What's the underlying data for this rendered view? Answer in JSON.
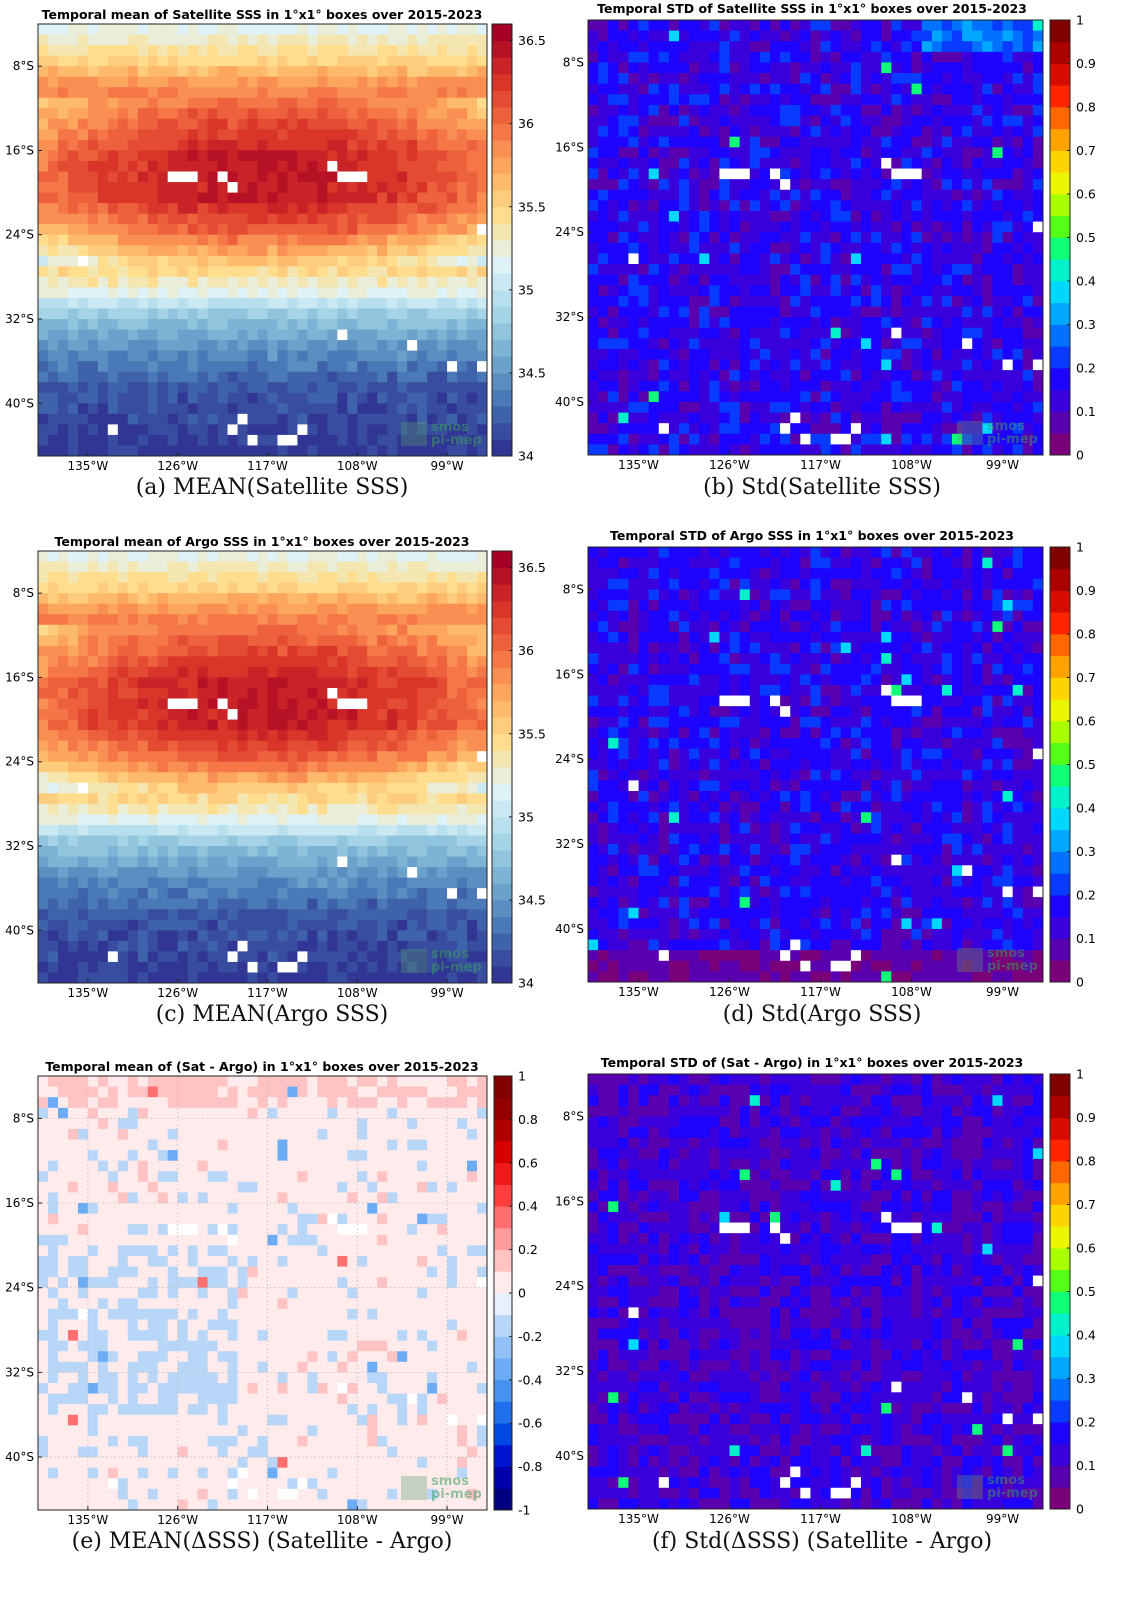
{
  "figure": {
    "watermark_line1": "smos",
    "watermark_line2": "pi-mep"
  },
  "chart_data": [
    {
      "id": "a",
      "type": "heatmap",
      "title": "Temporal mean of Satellite SSS in 1°x1° boxes over 2015-2023",
      "caption": "(a) MEAN(Satellite SSS)",
      "field": "mean_sat",
      "xticks": [
        "135°W",
        "126°W",
        "117°W",
        "108°W",
        "99°W"
      ],
      "xtick_values": [
        -135,
        -126,
        -117,
        -108,
        -99
      ],
      "yticks": [
        "8°S",
        "16°S",
        "24°S",
        "32°S",
        "40°S"
      ],
      "ytick_values": [
        -8,
        -16,
        -24,
        -32,
        -40
      ],
      "xlim": [
        -140,
        -95
      ],
      "ylim": [
        -45,
        -4
      ],
      "colorbar": {
        "colormap": "RdYlBu_r",
        "range": [
          34,
          36.6
        ],
        "ticks": [
          "34",
          "34.5",
          "35",
          "35.5",
          "36",
          "36.5"
        ],
        "tick_values": [
          34,
          34.5,
          35,
          35.5,
          36,
          36.5
        ],
        "levels": 26
      },
      "grid": false,
      "approx_values": {
        "lat_profile": [
          [
            -4,
            35.2
          ],
          [
            -7,
            35.5
          ],
          [
            -9,
            35.8
          ],
          [
            -12,
            36.1
          ],
          [
            -16,
            36.4
          ],
          [
            -20,
            36.4
          ],
          [
            -23,
            36.1
          ],
          [
            -26,
            35.6
          ],
          [
            -29,
            35.2
          ],
          [
            -31,
            34.8
          ],
          [
            -34,
            34.5
          ],
          [
            -38,
            34.2
          ],
          [
            -45,
            34.05
          ]
        ],
        "saltiest_center_lon": -118
      }
    },
    {
      "id": "b",
      "type": "heatmap",
      "title": "Temporal STD of Satellite SSS in 1°x1° boxes over 2015-2023",
      "caption": "(b) Std(Satellite SSS)",
      "field": "std_sat",
      "xticks": [
        "135°W",
        "126°W",
        "117°W",
        "108°W",
        "99°W"
      ],
      "xtick_values": [
        -135,
        -126,
        -117,
        -108,
        -99
      ],
      "yticks": [
        "8°S",
        "16°S",
        "24°S",
        "32°S",
        "40°S"
      ],
      "ytick_values": [
        -8,
        -16,
        -24,
        -32,
        -40
      ],
      "xlim": [
        -140,
        -95
      ],
      "ylim": [
        -45,
        -4
      ],
      "colorbar": {
        "colormap": "jet_purple",
        "range": [
          0,
          1
        ],
        "ticks": [
          "0",
          "0.1",
          "0.2",
          "0.3",
          "0.4",
          "0.5",
          "0.6",
          "0.7",
          "0.8",
          "0.9",
          "1"
        ],
        "tick_values": [
          0,
          0.1,
          0.2,
          0.3,
          0.4,
          0.5,
          0.6,
          0.7,
          0.8,
          0.9,
          1
        ],
        "levels": 20
      },
      "grid": false,
      "approx_values": {
        "typical_range": [
          0.08,
          0.25
        ],
        "max_near_northeast": 0.45
      }
    },
    {
      "id": "c",
      "type": "heatmap",
      "title": "Temporal mean of Argo SSS in 1°x1° boxes over 2015-2023",
      "caption": "(c) MEAN(Argo SSS)",
      "field": "mean_argo",
      "xticks": [
        "135°W",
        "126°W",
        "117°W",
        "108°W",
        "99°W"
      ],
      "xtick_values": [
        -135,
        -126,
        -117,
        -108,
        -99
      ],
      "yticks": [
        "8°S",
        "16°S",
        "24°S",
        "32°S",
        "40°S"
      ],
      "ytick_values": [
        -8,
        -16,
        -24,
        -32,
        -40
      ],
      "xlim": [
        -140,
        -95
      ],
      "ylim": [
        -45,
        -4
      ],
      "colorbar": {
        "colormap": "RdYlBu_r",
        "range": [
          34,
          36.6
        ],
        "ticks": [
          "34",
          "34.5",
          "35",
          "35.5",
          "36",
          "36.5"
        ],
        "tick_values": [
          34,
          34.5,
          35,
          35.5,
          36,
          36.5
        ],
        "levels": 26
      },
      "grid": false,
      "approx_values": {
        "lat_profile": [
          [
            -4,
            35.2
          ],
          [
            -7,
            35.5
          ],
          [
            -9,
            35.8
          ],
          [
            -12,
            36.1
          ],
          [
            -16,
            36.4
          ],
          [
            -20,
            36.4
          ],
          [
            -23,
            36.1
          ],
          [
            -26,
            35.6
          ],
          [
            -29,
            35.2
          ],
          [
            -31,
            34.8
          ],
          [
            -34,
            34.5
          ],
          [
            -38,
            34.2
          ],
          [
            -45,
            34.05
          ]
        ],
        "saltiest_center_lon": -118
      }
    },
    {
      "id": "d",
      "type": "heatmap",
      "title": "Temporal STD of Argo SSS in 1°x1° boxes over 2015-2023",
      "caption": "(d) Std(Argo SSS)",
      "field": "std_argo",
      "xticks": [
        "135°W",
        "126°W",
        "117°W",
        "108°W",
        "99°W"
      ],
      "xtick_values": [
        -135,
        -126,
        -117,
        -108,
        -99
      ],
      "yticks": [
        "8°S",
        "16°S",
        "24°S",
        "32°S",
        "40°S"
      ],
      "ytick_values": [
        -8,
        -16,
        -24,
        -32,
        -40
      ],
      "xlim": [
        -140,
        -95
      ],
      "ylim": [
        -45,
        -4
      ],
      "colorbar": {
        "colormap": "jet_purple",
        "range": [
          0,
          1
        ],
        "ticks": [
          "0",
          "0.1",
          "0.2",
          "0.3",
          "0.4",
          "0.5",
          "0.6",
          "0.7",
          "0.8",
          "0.9",
          "1"
        ],
        "tick_values": [
          0,
          0.1,
          0.2,
          0.3,
          0.4,
          0.5,
          0.6,
          0.7,
          0.8,
          0.9,
          1
        ],
        "levels": 20
      },
      "grid": false,
      "approx_values": {
        "typical_range": [
          0.05,
          0.25
        ],
        "south_of_38S": 0.05
      }
    },
    {
      "id": "e",
      "type": "heatmap",
      "title": "Temporal mean of (Sat - Argo) in 1°x1° boxes over 2015-2023",
      "caption": "(e) MEAN(ΔSSS) (Satellite - Argo)",
      "field": "mean_diff",
      "xticks": [
        "135°W",
        "126°W",
        "117°W",
        "108°W",
        "99°W"
      ],
      "xtick_values": [
        -135,
        -126,
        -117,
        -108,
        -99
      ],
      "yticks": [
        "8°S",
        "16°S",
        "24°S",
        "32°S",
        "40°S"
      ],
      "ytick_values": [
        -8,
        -16,
        -24,
        -32,
        -40
      ],
      "xlim": [
        -140,
        -95
      ],
      "ylim": [
        -45,
        -4
      ],
      "colorbar": {
        "colormap": "diverging_blue_red",
        "range": [
          -1,
          1
        ],
        "ticks": [
          "-1",
          "-0.8",
          "-0.6",
          "-0.4",
          "-0.2",
          "0",
          "0.2",
          "0.4",
          "0.6",
          "0.8",
          "1"
        ],
        "tick_values": [
          -1,
          -0.8,
          -0.6,
          -0.4,
          -0.2,
          0,
          0.2,
          0.4,
          0.6,
          0.8,
          1
        ],
        "levels": 20
      },
      "grid": true,
      "approx_values": {
        "north_of_7S": 0.15,
        "west_20S_to_35S": -0.15,
        "elsewhere": 0
      }
    },
    {
      "id": "f",
      "type": "heatmap",
      "title": "Temporal STD of (Sat - Argo) in 1°x1° boxes over 2015-2023",
      "caption": "(f) Std(ΔSSS) (Satellite - Argo)",
      "field": "std_diff",
      "xticks": [
        "135°W",
        "126°W",
        "117°W",
        "108°W",
        "99°W"
      ],
      "xtick_values": [
        -135,
        -126,
        -117,
        -108,
        -99
      ],
      "yticks": [
        "8°S",
        "16°S",
        "24°S",
        "32°S",
        "40°S"
      ],
      "ytick_values": [
        -8,
        -16,
        -24,
        -32,
        -40
      ],
      "xlim": [
        -140,
        -95
      ],
      "ylim": [
        -45,
        -4
      ],
      "colorbar": {
        "colormap": "jet_purple",
        "range": [
          0,
          1
        ],
        "ticks": [
          "0",
          "0.1",
          "0.2",
          "0.3",
          "0.4",
          "0.5",
          "0.6",
          "0.7",
          "0.8",
          "0.9",
          "1"
        ],
        "tick_values": [
          0,
          0.1,
          0.2,
          0.3,
          0.4,
          0.5,
          0.6,
          0.7,
          0.8,
          0.9,
          1
        ],
        "levels": 20
      },
      "grid": false,
      "approx_values": {
        "typical_range": [
          0.05,
          0.2
        ]
      }
    }
  ]
}
